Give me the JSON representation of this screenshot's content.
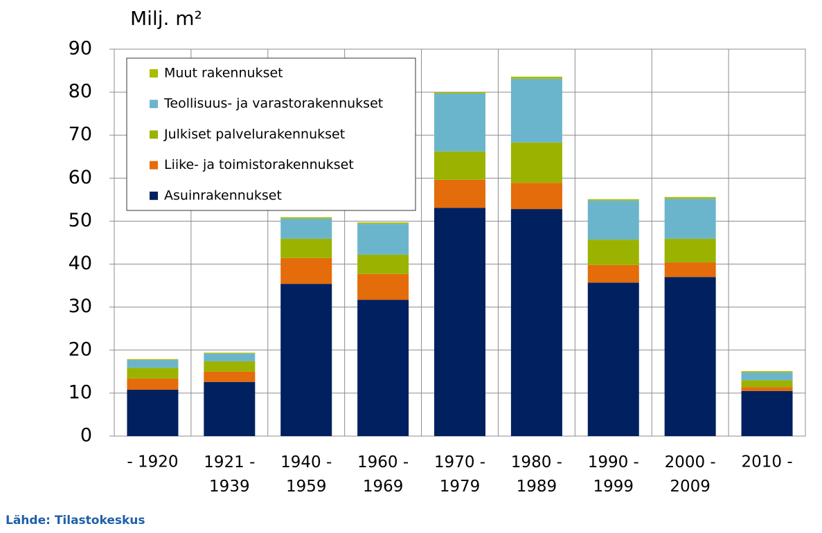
{
  "chart_data": {
    "type": "stacked-bar",
    "title": "Milj. m²",
    "source": "Lähde: Tilastokeskus",
    "categories": [
      "- 1920",
      "1921 -\n1939",
      "1940 -\n1959",
      "1960 -\n1969",
      "1970 -\n1979",
      "1980 -\n1989",
      "1990 -\n1999",
      "2000 -\n2009",
      "2010 -"
    ],
    "series": [
      {
        "name": "Asuinrakennukset",
        "color": "#002060",
        "values": [
          10.8,
          12.6,
          35.4,
          31.7,
          53.1,
          52.8,
          35.7,
          37.0,
          10.5
        ]
      },
      {
        "name": "Liike- ja toimistorakennukset",
        "color": "#e46c0a",
        "values": [
          2.6,
          2.4,
          6.0,
          6.0,
          6.5,
          6.1,
          4.1,
          3.4,
          0.9
        ]
      },
      {
        "name": "Julkiset palvelurakennukset",
        "color": "#9bb300",
        "values": [
          2.5,
          2.4,
          4.5,
          4.5,
          6.6,
          9.4,
          5.9,
          5.5,
          1.6
        ]
      },
      {
        "name": "Teollisuus- ja varastorakennukset",
        "color": "#6bb5cc",
        "values": [
          1.8,
          1.8,
          4.7,
          7.2,
          13.5,
          14.8,
          9.1,
          9.3,
          1.8
        ]
      },
      {
        "name": "Muut rakennukset",
        "color": "#a8bc00",
        "values": [
          0.2,
          0.2,
          0.3,
          0.3,
          0.3,
          0.5,
          0.3,
          0.4,
          0.3
        ]
      }
    ],
    "ylim": [
      0,
      90
    ],
    "yticks": [
      0,
      10,
      20,
      30,
      40,
      50,
      60,
      70,
      80,
      90
    ],
    "grid": true
  }
}
